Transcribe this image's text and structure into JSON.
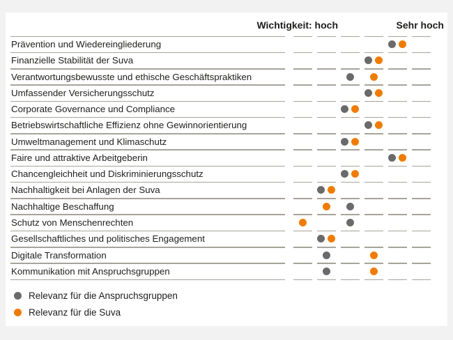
{
  "page": {
    "background_color": "#f2f2f2",
    "panel_color": "#ffffff",
    "line_color": "#a6a399",
    "text_color": "#1d1d1b"
  },
  "chart_data": {
    "type": "scatter",
    "title": "",
    "axis": {
      "label_high": "Wichtigkeit: hoch",
      "label_very_high": "Sehr hoch",
      "columns": 6,
      "scale_min_column": 1,
      "scale_max_column": 6
    },
    "series": [
      {
        "name": "Relevanz für die Anspruchsgruppen",
        "color": "#6a6a6a",
        "key": "anspruchsgruppen"
      },
      {
        "name": "Relevanz für die Suva",
        "color": "#ef7c00",
        "key": "suva"
      }
    ],
    "rows": [
      {
        "label": "Prävention und Wiedereingliederung",
        "anspruchsgruppen": 5,
        "suva": 5
      },
      {
        "label": "Finanzielle Stabilität der Suva",
        "anspruchsgruppen": 4,
        "suva": 4
      },
      {
        "label": "Verantwortungsbewusste und ethische Geschäftspraktiken",
        "anspruchsgruppen": 3,
        "suva": 4
      },
      {
        "label": "Umfassender Versicherungsschutz",
        "anspruchsgruppen": 4,
        "suva": 4
      },
      {
        "label": "Corporate Governance und Compliance",
        "anspruchsgruppen": 3,
        "suva": 3
      },
      {
        "label": "Betriebswirtschaftliche Effizienz ohne Gewinnorientierung",
        "anspruchsgruppen": 4,
        "suva": 4
      },
      {
        "label": "Umweltmanagement und Klimaschutz",
        "anspruchsgruppen": 3,
        "suva": 3
      },
      {
        "label": "Faire und attraktive Arbeitgeberin",
        "anspruchsgruppen": 5,
        "suva": 5
      },
      {
        "label": "Chancengleichheit und Diskriminierungsschutz",
        "anspruchsgruppen": 3,
        "suva": 3
      },
      {
        "label": "Nachhaltigkeit bei Anlagen der Suva",
        "anspruchsgruppen": 2,
        "suva": 2
      },
      {
        "label": "Nachhaltige Beschaffung",
        "anspruchsgruppen": 3,
        "suva": 2
      },
      {
        "label": "Schutz von Menschenrechten",
        "anspruchsgruppen": 3,
        "suva": 1
      },
      {
        "label": "Gesellschaftliches und politisches Engagement",
        "anspruchsgruppen": 2,
        "suva": 2
      },
      {
        "label": "Digitale Transformation",
        "anspruchsgruppen": 2,
        "suva": 4
      },
      {
        "label": "Kommunikation mit Anspruchsgruppen",
        "anspruchsgruppen": 2,
        "suva": 4
      }
    ],
    "legend": [
      "Relevanz für die Anspruchsgruppen",
      "Relevanz für die Suva"
    ]
  }
}
